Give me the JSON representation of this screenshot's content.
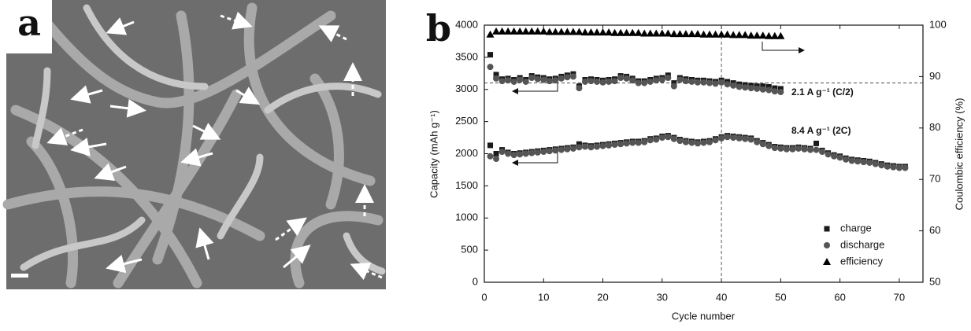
{
  "panel_labels": [
    "a",
    "b"
  ],
  "chart_data": {
    "type": "scatter",
    "xlabel": "Cycle number",
    "ylabel": "Capacity (mAh g⁻¹)",
    "y2label": "Coulombic efficiency (%)",
    "xlim": [
      0,
      74
    ],
    "xticks": [
      0,
      10,
      20,
      30,
      40,
      50,
      60,
      70
    ],
    "ylim": [
      0,
      4000
    ],
    "yticks": [
      0,
      500,
      1000,
      1500,
      2000,
      2500,
      3000,
      3500,
      4000
    ],
    "y2lim": [
      50,
      100
    ],
    "y2ticks": [
      50,
      60,
      70,
      80,
      90,
      100
    ],
    "annotations": [
      "2.1 A g⁻¹ (C/2)",
      "8.4 A g⁻¹ (2C)"
    ],
    "reference_lines": [
      {
        "axis": "x",
        "value": 40
      },
      {
        "axis": "y",
        "value": 3100
      }
    ],
    "legend": "lower right",
    "series": [
      {
        "name": "charge",
        "color": "#1a1a1a",
        "marker": "square",
        "x": [
          1,
          2,
          3,
          4,
          5,
          6,
          7,
          8,
          9,
          10,
          11,
          12,
          13,
          14,
          15,
          16,
          17,
          18,
          19,
          20,
          21,
          22,
          23,
          24,
          25,
          26,
          27,
          28,
          29,
          30,
          31,
          32,
          33,
          34,
          35,
          36,
          37,
          38,
          39,
          40,
          41,
          42,
          43,
          44,
          45,
          46,
          47,
          48,
          49,
          50,
          1,
          2,
          3,
          4,
          5,
          6,
          7,
          8,
          9,
          10,
          11,
          12,
          13,
          14,
          15,
          16,
          17,
          18,
          19,
          20,
          21,
          22,
          23,
          24,
          25,
          26,
          27,
          28,
          29,
          30,
          31,
          32,
          33,
          34,
          35,
          36,
          37,
          38,
          39,
          40,
          41,
          42,
          43,
          44,
          45,
          46,
          47,
          48,
          49,
          50,
          51,
          52,
          53,
          54,
          55,
          56,
          57,
          58,
          59,
          60,
          61,
          62,
          63,
          64,
          65,
          66,
          67,
          68,
          69,
          70,
          71
        ],
        "values": [
          3540,
          3230,
          3160,
          3170,
          3150,
          3180,
          3150,
          3210,
          3190,
          3180,
          3160,
          3170,
          3200,
          3220,
          3240,
          3050,
          3150,
          3160,
          3150,
          3140,
          3150,
          3160,
          3210,
          3200,
          3170,
          3130,
          3130,
          3150,
          3170,
          3180,
          3220,
          3100,
          3180,
          3160,
          3150,
          3140,
          3140,
          3130,
          3120,
          3140,
          3120,
          3100,
          3080,
          3070,
          3060,
          3050,
          3050,
          3040,
          3020,
          3010,
          2130,
          2000,
          2060,
          2020,
          2000,
          2010,
          2020,
          2030,
          2040,
          2050,
          2060,
          2070,
          2080,
          2090,
          2100,
          2150,
          2130,
          2120,
          2130,
          2140,
          2150,
          2160,
          2170,
          2180,
          2190,
          2190,
          2200,
          2230,
          2240,
          2270,
          2280,
          2250,
          2220,
          2200,
          2190,
          2180,
          2190,
          2200,
          2230,
          2260,
          2280,
          2270,
          2260,
          2250,
          2240,
          2200,
          2170,
          2140,
          2110,
          2100,
          2090,
          2090,
          2100,
          2090,
          2080,
          2160,
          2050,
          2010,
          1980,
          1960,
          1930,
          1910,
          1900,
          1890,
          1880,
          1860,
          1840,
          1820,
          1810,
          1800,
          1800
        ]
      },
      {
        "name": "discharge",
        "color": "#555555",
        "marker": "circle",
        "x": [
          1,
          2,
          3,
          4,
          5,
          6,
          7,
          8,
          9,
          10,
          11,
          12,
          13,
          14,
          15,
          16,
          17,
          18,
          19,
          20,
          21,
          22,
          23,
          24,
          25,
          26,
          27,
          28,
          29,
          30,
          31,
          32,
          33,
          34,
          35,
          36,
          37,
          38,
          39,
          40,
          41,
          42,
          43,
          44,
          45,
          46,
          47,
          48,
          49,
          50,
          1,
          2,
          3,
          4,
          5,
          6,
          7,
          8,
          9,
          10,
          11,
          12,
          13,
          14,
          15,
          16,
          17,
          18,
          19,
          20,
          21,
          22,
          23,
          24,
          25,
          26,
          27,
          28,
          29,
          30,
          31,
          32,
          33,
          34,
          35,
          36,
          37,
          38,
          39,
          40,
          41,
          42,
          43,
          44,
          45,
          46,
          47,
          48,
          49,
          50,
          51,
          52,
          53,
          54,
          55,
          56,
          57,
          58,
          59,
          60,
          61,
          62,
          63,
          64,
          65,
          66,
          67,
          68,
          69,
          70,
          71
        ],
        "values": [
          3350,
          3170,
          3130,
          3140,
          3120,
          3150,
          3120,
          3180,
          3160,
          3150,
          3130,
          3140,
          3170,
          3190,
          3200,
          3020,
          3120,
          3130,
          3120,
          3110,
          3120,
          3130,
          3180,
          3170,
          3140,
          3100,
          3100,
          3120,
          3140,
          3150,
          3180,
          3050,
          3150,
          3130,
          3120,
          3110,
          3110,
          3100,
          3090,
          3110,
          3080,
          3060,
          3040,
          3030,
          3020,
          3010,
          3000,
          2990,
          2970,
          2960,
          1960,
          1920,
          2030,
          2000,
          1980,
          1990,
          2000,
          2010,
          2020,
          2030,
          2040,
          2050,
          2060,
          2070,
          2080,
          2100,
          2110,
          2100,
          2110,
          2120,
          2130,
          2140,
          2150,
          2160,
          2170,
          2170,
          2180,
          2210,
          2220,
          2250,
          2260,
          2230,
          2200,
          2180,
          2170,
          2160,
          2170,
          2180,
          2210,
          2240,
          2260,
          2250,
          2240,
          2230,
          2220,
          2180,
          2150,
          2120,
          2090,
          2080,
          2070,
          2070,
          2080,
          2070,
          2060,
          2060,
          2030,
          1990,
          1960,
          1940,
          1910,
          1890,
          1880,
          1870,
          1860,
          1840,
          1820,
          1800,
          1790,
          1780,
          1780
        ]
      },
      {
        "name": "efficiency",
        "color": "#000000",
        "marker": "triangle",
        "axis": "y2",
        "x": [
          1,
          2,
          3,
          4,
          5,
          6,
          7,
          8,
          9,
          10,
          11,
          12,
          13,
          14,
          15,
          16,
          17,
          18,
          19,
          20,
          21,
          22,
          23,
          24,
          25,
          26,
          27,
          28,
          29,
          30,
          31,
          32,
          33,
          34,
          35,
          36,
          37,
          38,
          39,
          40,
          41,
          42,
          43,
          44,
          45,
          46,
          47,
          48,
          49,
          50
        ],
        "values": [
          98.2,
          98.8,
          98.8,
          98.8,
          98.8,
          98.8,
          98.8,
          98.8,
          98.8,
          98.8,
          98.7,
          98.7,
          98.7,
          98.7,
          98.7,
          98.7,
          98.6,
          98.6,
          98.6,
          98.6,
          98.6,
          98.5,
          98.5,
          98.5,
          98.5,
          98.5,
          98.4,
          98.4,
          98.4,
          98.4,
          98.4,
          98.3,
          98.3,
          98.3,
          98.3,
          98.3,
          98.2,
          98.2,
          98.2,
          98.2,
          98.2,
          98.1,
          98.1,
          98.1,
          98.0,
          98.0,
          98.0,
          97.9,
          97.9,
          97.9
        ]
      }
    ]
  }
}
